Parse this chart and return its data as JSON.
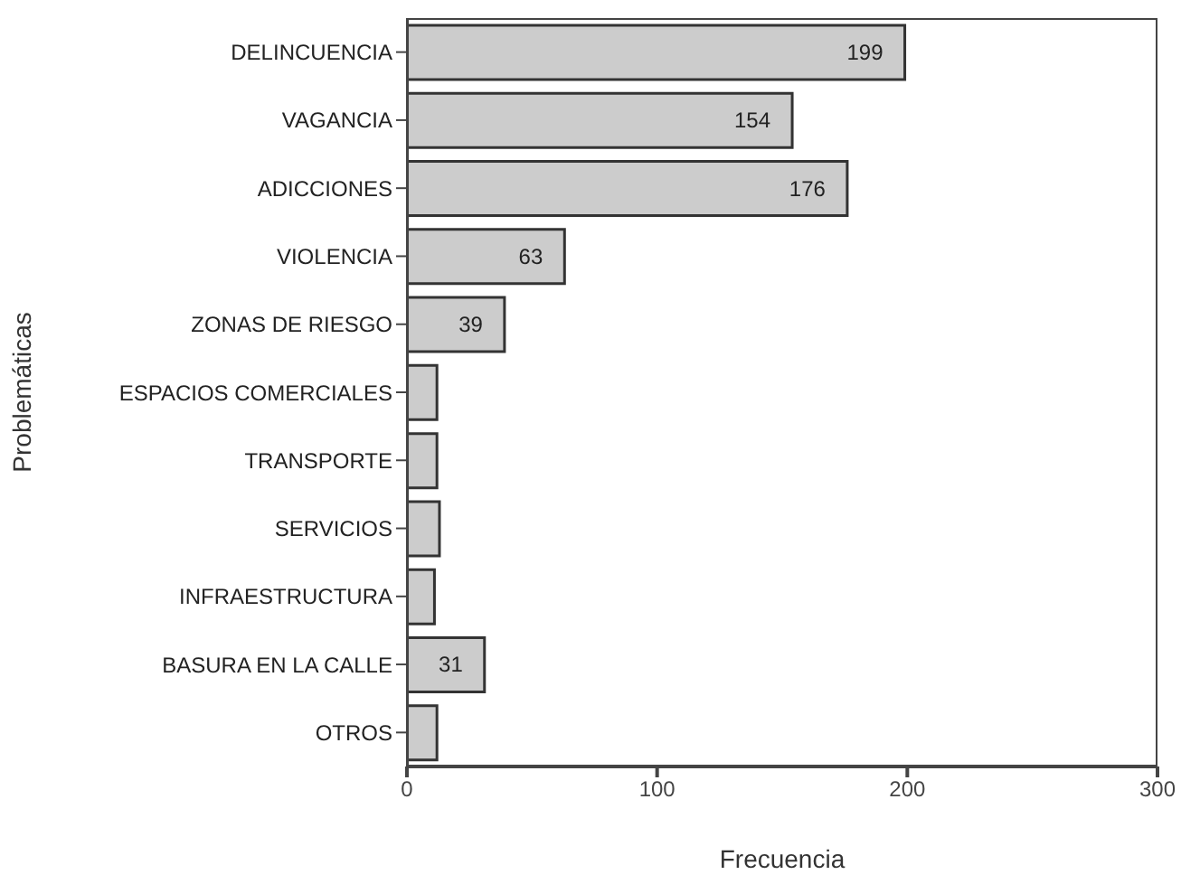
{
  "chart_data": {
    "type": "bar",
    "orientation": "horizontal",
    "xlabel": "Frecuencia",
    "ylabel": "Problemáticas",
    "categories": [
      "DELINCUENCIA",
      "VAGANCIA",
      "ADICCIONES",
      "VIOLENCIA",
      "ZONAS DE RIESGO",
      "ESPACIOS COMERCIALES",
      "TRANSPORTE",
      "SERVICIOS",
      "INFRAESTRUCTURA",
      "BASURA EN LA CALLE",
      "OTROS"
    ],
    "values": [
      199,
      154,
      176,
      63,
      39,
      12,
      12,
      13,
      11,
      31,
      12
    ],
    "value_labels": [
      "199",
      "154",
      "176",
      "63",
      "39",
      null,
      null,
      null,
      null,
      "31",
      null
    ],
    "color": "#cccccc",
    "xlim": [
      0,
      300
    ],
    "xticks": [
      0,
      100,
      200,
      300
    ]
  }
}
